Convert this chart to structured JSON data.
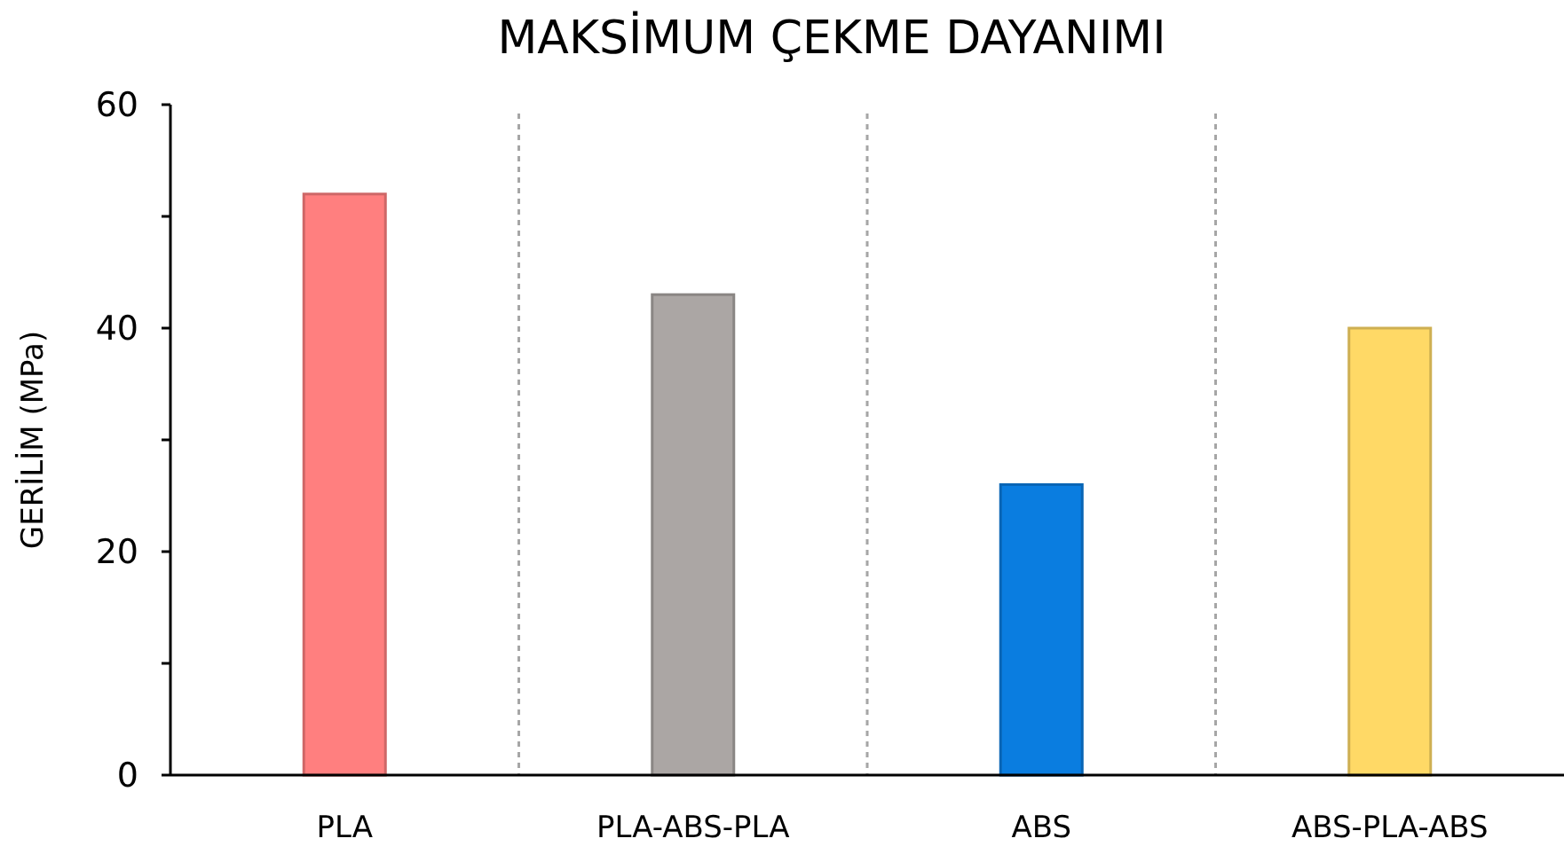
{
  "chart_data": {
    "type": "bar",
    "title": "MAKSİMUM ÇEKME DAYANIMI",
    "ylabel": "GERİLİM (MPa)",
    "categories": [
      "PLA",
      "PLA-ABS-PLA",
      "ABS",
      "ABS-PLA-ABS"
    ],
    "values": [
      52,
      43,
      26,
      40
    ],
    "colors": [
      "#ff7f7f",
      "#aba6a4",
      "#0a7de0",
      "#ffd966"
    ],
    "ylim": [
      0,
      60
    ],
    "yticks": [
      0,
      {
        "value": 10,
        "label": null
      },
      20,
      {
        "value": 30,
        "label": null
      },
      40,
      {
        "value": 50,
        "label": null
      },
      60
    ],
    "grid": "x"
  }
}
